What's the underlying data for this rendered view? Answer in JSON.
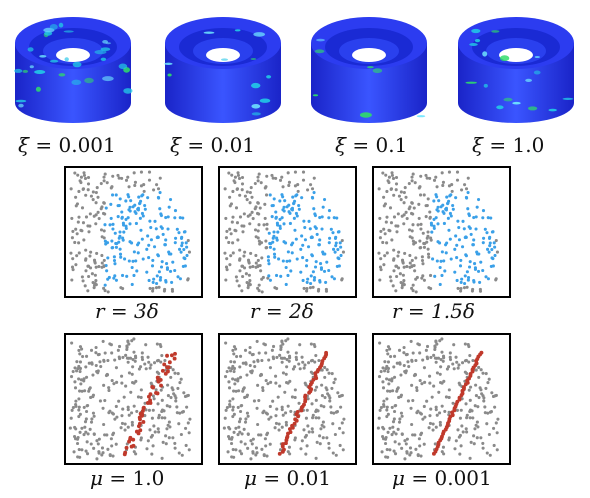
{
  "top_row": {
    "items": [
      {
        "symbol": "ξ",
        "value": "0.001"
      },
      {
        "symbol": "ξ",
        "value": "0.01"
      },
      {
        "symbol": "ξ",
        "value": "0.1"
      },
      {
        "symbol": "ξ",
        "value": "1.0"
      }
    ]
  },
  "middle_row": {
    "items": [
      {
        "symbol": "r",
        "value": "3δ",
        "highlight_frac": 1.0
      },
      {
        "symbol": "r",
        "value": "2δ",
        "highlight_frac": 0.75
      },
      {
        "symbol": "r",
        "value": "1.5δ",
        "highlight_frac": 0.5
      }
    ]
  },
  "bottom_row": {
    "items": [
      {
        "symbol": "μ",
        "value": "1.0",
        "spread": 1.0
      },
      {
        "symbol": "μ",
        "value": "0.01",
        "spread": 0.35
      },
      {
        "symbol": "μ",
        "value": "0.001",
        "spread": 0.2
      }
    ]
  },
  "colors": {
    "particle_gray": "#8a8a8a",
    "particle_blue": "#3aa0e8",
    "crack_red": "#c0392b",
    "cylinder_blue": "#1e2ee0",
    "cylinder_green": "#2fdc6a",
    "cylinder_cyan": "#22c6e6"
  }
}
